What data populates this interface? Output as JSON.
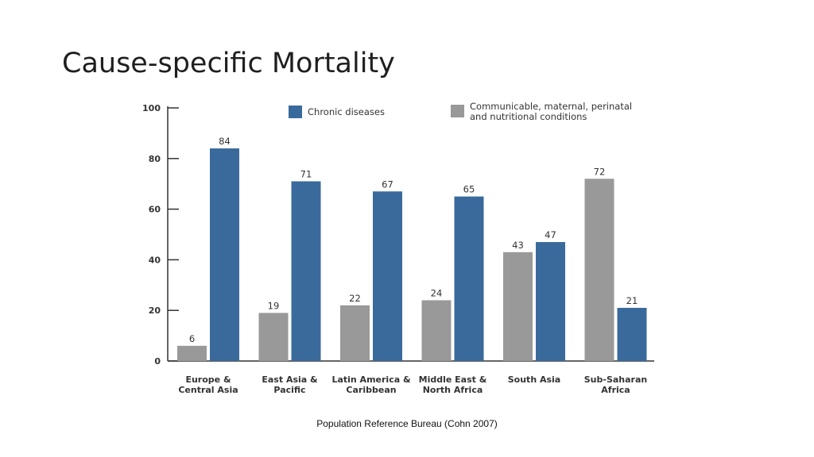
{
  "slide": {
    "title": "Cause-specific Mortality",
    "source": "Population Reference Bureau (Cohn 2007)"
  },
  "chart_data": {
    "type": "bar",
    "categories": [
      [
        "Europe &",
        "Central Asia"
      ],
      [
        "East Asia &",
        "Pacific"
      ],
      [
        "Latin America &",
        "Caribbean"
      ],
      [
        "Middle East &",
        "North Africa"
      ],
      [
        "South Asia"
      ],
      [
        "Sub-Saharan",
        "Africa"
      ]
    ],
    "series": [
      {
        "name": [
          "Communicable, maternal, perinatal",
          "and nutritional conditions"
        ],
        "color": "#999999",
        "values": [
          6,
          19,
          22,
          24,
          43,
          72
        ]
      },
      {
        "name": [
          "Chronic diseases"
        ],
        "color": "#3a6a9c",
        "values": [
          84,
          71,
          67,
          65,
          47,
          21
        ]
      }
    ],
    "yticks": [
      0,
      20,
      40,
      60,
      80,
      100
    ],
    "ylim": [
      0,
      100
    ],
    "grid": false,
    "legend": "top"
  }
}
